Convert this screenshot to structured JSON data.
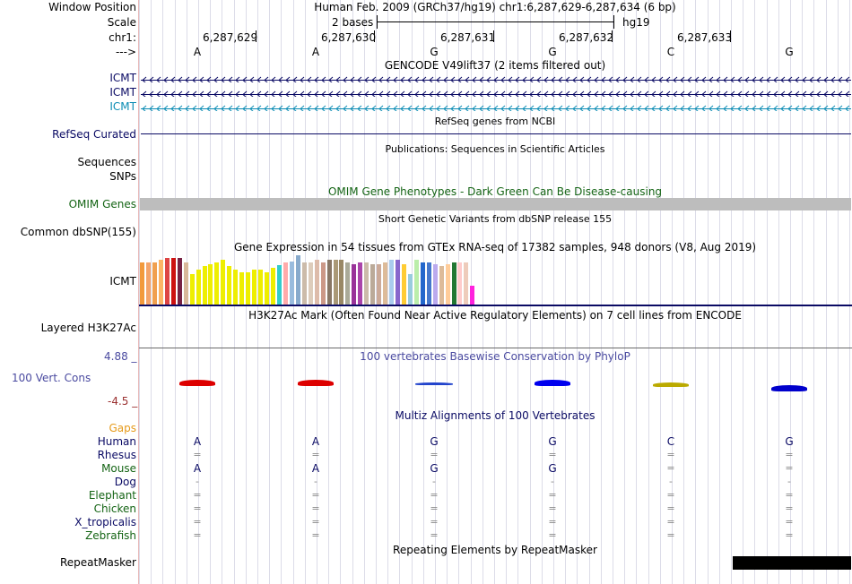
{
  "ruler": {
    "window_position_label": "Window Position",
    "window_position_value": "Human Feb. 2009 (GRCh37/hg19)   chr1:6,287,629-6,287,634 (6 bp)",
    "scale_label": "Scale",
    "scale_value": "2 bases",
    "scale_assembly": "hg19",
    "chrom_label": "chr1:",
    "coords": [
      "6,287,629",
      "6,287,630",
      "6,287,631",
      "6,287,632",
      "6,287,633"
    ],
    "strand_label": "--->",
    "bases": [
      "A",
      "A",
      "G",
      "G",
      "C",
      "G"
    ]
  },
  "gencode": {
    "title": "GENCODE V49lift37 (2 items filtered out)",
    "genes": [
      {
        "name": "ICMT",
        "color": "#0a0a64"
      },
      {
        "name": "ICMT",
        "color": "#0a0a64"
      },
      {
        "name": "ICMT",
        "color": "#0c8cb4"
      }
    ]
  },
  "refseq": {
    "title": "RefSeq genes from NCBI",
    "label": "RefSeq Curated"
  },
  "publications": {
    "title": "Publications: Sequences in Scientific Articles",
    "labels": [
      "Sequences",
      "SNPs"
    ]
  },
  "omim": {
    "title": "OMIM Gene Phenotypes - Dark Green Can Be Disease-causing",
    "label": "OMIM Genes"
  },
  "dbsnp": {
    "title": "Short Genetic Variants from dbSNP release 155",
    "label": "Common dbSNP(155)"
  },
  "gtex": {
    "title": "Gene Expression in 54 tissues from GTEx RNA-seq of 17382 samples, 948 donors (V8, Aug 2019)",
    "label": "ICMT",
    "bars": [
      {
        "v": 0.86,
        "c": "#f29a3c"
      },
      {
        "v": 0.86,
        "c": "#f4a46a"
      },
      {
        "v": 0.86,
        "c": "#f0a050"
      },
      {
        "v": 0.9,
        "c": "#fcb466"
      },
      {
        "v": 0.94,
        "c": "#dd4444"
      },
      {
        "v": 0.94,
        "c": "#cc1111"
      },
      {
        "v": 0.94,
        "c": "#772244"
      },
      {
        "v": 0.86,
        "c": "#d8b89a"
      },
      {
        "v": 0.62,
        "c": "#eeee00"
      },
      {
        "v": 0.7,
        "c": "#eeee00"
      },
      {
        "v": 0.78,
        "c": "#eeee00"
      },
      {
        "v": 0.82,
        "c": "#eeee00"
      },
      {
        "v": 0.86,
        "c": "#eeee00"
      },
      {
        "v": 0.9,
        "c": "#eeee00"
      },
      {
        "v": 0.78,
        "c": "#eeee00"
      },
      {
        "v": 0.7,
        "c": "#eeee00"
      },
      {
        "v": 0.66,
        "c": "#eeee00"
      },
      {
        "v": 0.66,
        "c": "#eeee00"
      },
      {
        "v": 0.7,
        "c": "#eeee00"
      },
      {
        "v": 0.7,
        "c": "#eeee00"
      },
      {
        "v": 0.66,
        "c": "#eeee00"
      },
      {
        "v": 0.74,
        "c": "#eeee00"
      },
      {
        "v": 0.8,
        "c": "#33cccc"
      },
      {
        "v": 0.86,
        "c": "#ffaaaa"
      },
      {
        "v": 0.88,
        "c": "#99bbdd"
      },
      {
        "v": 1.0,
        "c": "#88aacc"
      },
      {
        "v": 0.86,
        "c": "#ccbbaa"
      },
      {
        "v": 0.86,
        "c": "#ddccbb"
      },
      {
        "v": 0.9,
        "c": "#ddbbaa"
      },
      {
        "v": 0.86,
        "c": "#cc9988"
      },
      {
        "v": 0.9,
        "c": "#887766"
      },
      {
        "v": 0.9,
        "c": "#aa9977"
      },
      {
        "v": 0.9,
        "c": "#998866"
      },
      {
        "v": 0.86,
        "c": "#aaaa99"
      },
      {
        "v": 0.82,
        "c": "#993399"
      },
      {
        "v": 0.86,
        "c": "#aa44aa"
      },
      {
        "v": 0.86,
        "c": "#ccbbaa"
      },
      {
        "v": 0.82,
        "c": "#bbaa99"
      },
      {
        "v": 0.82,
        "c": "#ccaa99"
      },
      {
        "v": 0.86,
        "c": "#ddbb99"
      },
      {
        "v": 0.9,
        "c": "#aaccee"
      },
      {
        "v": 0.9,
        "c": "#8866cc"
      },
      {
        "v": 0.82,
        "c": "#ffcc33"
      },
      {
        "v": 0.62,
        "c": "#99ccdd"
      },
      {
        "v": 0.9,
        "c": "#bbeeaa"
      },
      {
        "v": 0.86,
        "c": "#2266cc"
      },
      {
        "v": 0.86,
        "c": "#4477cc"
      },
      {
        "v": 0.82,
        "c": "#bbaaee"
      },
      {
        "v": 0.78,
        "c": "#ddbb99"
      },
      {
        "v": 0.82,
        "c": "#ffcc99"
      },
      {
        "v": 0.86,
        "c": "#227733"
      },
      {
        "v": 0.86,
        "c": "#ffcccc"
      },
      {
        "v": 0.86,
        "c": "#eeccbb"
      },
      {
        "v": 0.38,
        "c": "#ff22dd"
      }
    ]
  },
  "h3k27ac": {
    "title": "H3K27Ac Mark (Often Found Near Active Regulatory Elements) on 7 cell lines from ENCODE",
    "label": "Layered H3K27Ac"
  },
  "phylop": {
    "title": "100 vertebrates Basewise Conservation by PhyloP",
    "label": "100 Vert. Cons",
    "ymax": "4.88 _",
    "ymin": "-4.5 _",
    "logos": [
      {
        "base": "A",
        "color": "#dd0000"
      },
      {
        "base": "A",
        "color": "#dd0000"
      },
      {
        "base": "G",
        "color": "#2244cc"
      },
      {
        "base": "G",
        "color": "#0000ee"
      },
      {
        "base": "C",
        "color": "#bbaa00"
      },
      {
        "base": "G",
        "color": "#0000cc"
      }
    ]
  },
  "multiz": {
    "title": "Multiz Alignments of 100 Vertebrates",
    "gaps_label": "Gaps",
    "species": [
      {
        "name": "Human",
        "color": "#0a0a64",
        "row": [
          "A",
          "A",
          "G",
          "G",
          "C",
          "G"
        ]
      },
      {
        "name": "Rhesus",
        "color": "#0a0a64",
        "row": [
          "=",
          "=",
          "=",
          "=",
          "=",
          "="
        ]
      },
      {
        "name": "Mouse",
        "color": "#146414",
        "row": [
          "A",
          "A",
          "G",
          "G",
          "=",
          "="
        ]
      },
      {
        "name": "Dog",
        "color": "#0a0a64",
        "row": [
          "-",
          "-",
          "-",
          "-",
          "-",
          "-"
        ]
      },
      {
        "name": "Elephant",
        "color": "#146414",
        "row": [
          "=",
          "=",
          "=",
          "=",
          "=",
          "="
        ]
      },
      {
        "name": "Chicken",
        "color": "#146414",
        "row": [
          "=",
          "=",
          "=",
          "=",
          "=",
          "="
        ]
      },
      {
        "name": "X_tropicalis",
        "color": "#0a0a64",
        "row": [
          "=",
          "=",
          "=",
          "=",
          "=",
          "="
        ]
      },
      {
        "name": "Zebrafish",
        "color": "#146414",
        "row": [
          "=",
          "=",
          "=",
          "=",
          "=",
          "="
        ]
      }
    ]
  },
  "repeatmasker": {
    "title": "Repeating Elements by RepeatMasker",
    "label": "RepeatMasker"
  },
  "colors": {
    "label_blue": "#0a0a64",
    "omim_green": "#146414",
    "gaps_orange": "#e69a1a",
    "phylop_blue": "#4a4aa0",
    "phylop_red": "#9a3030"
  }
}
